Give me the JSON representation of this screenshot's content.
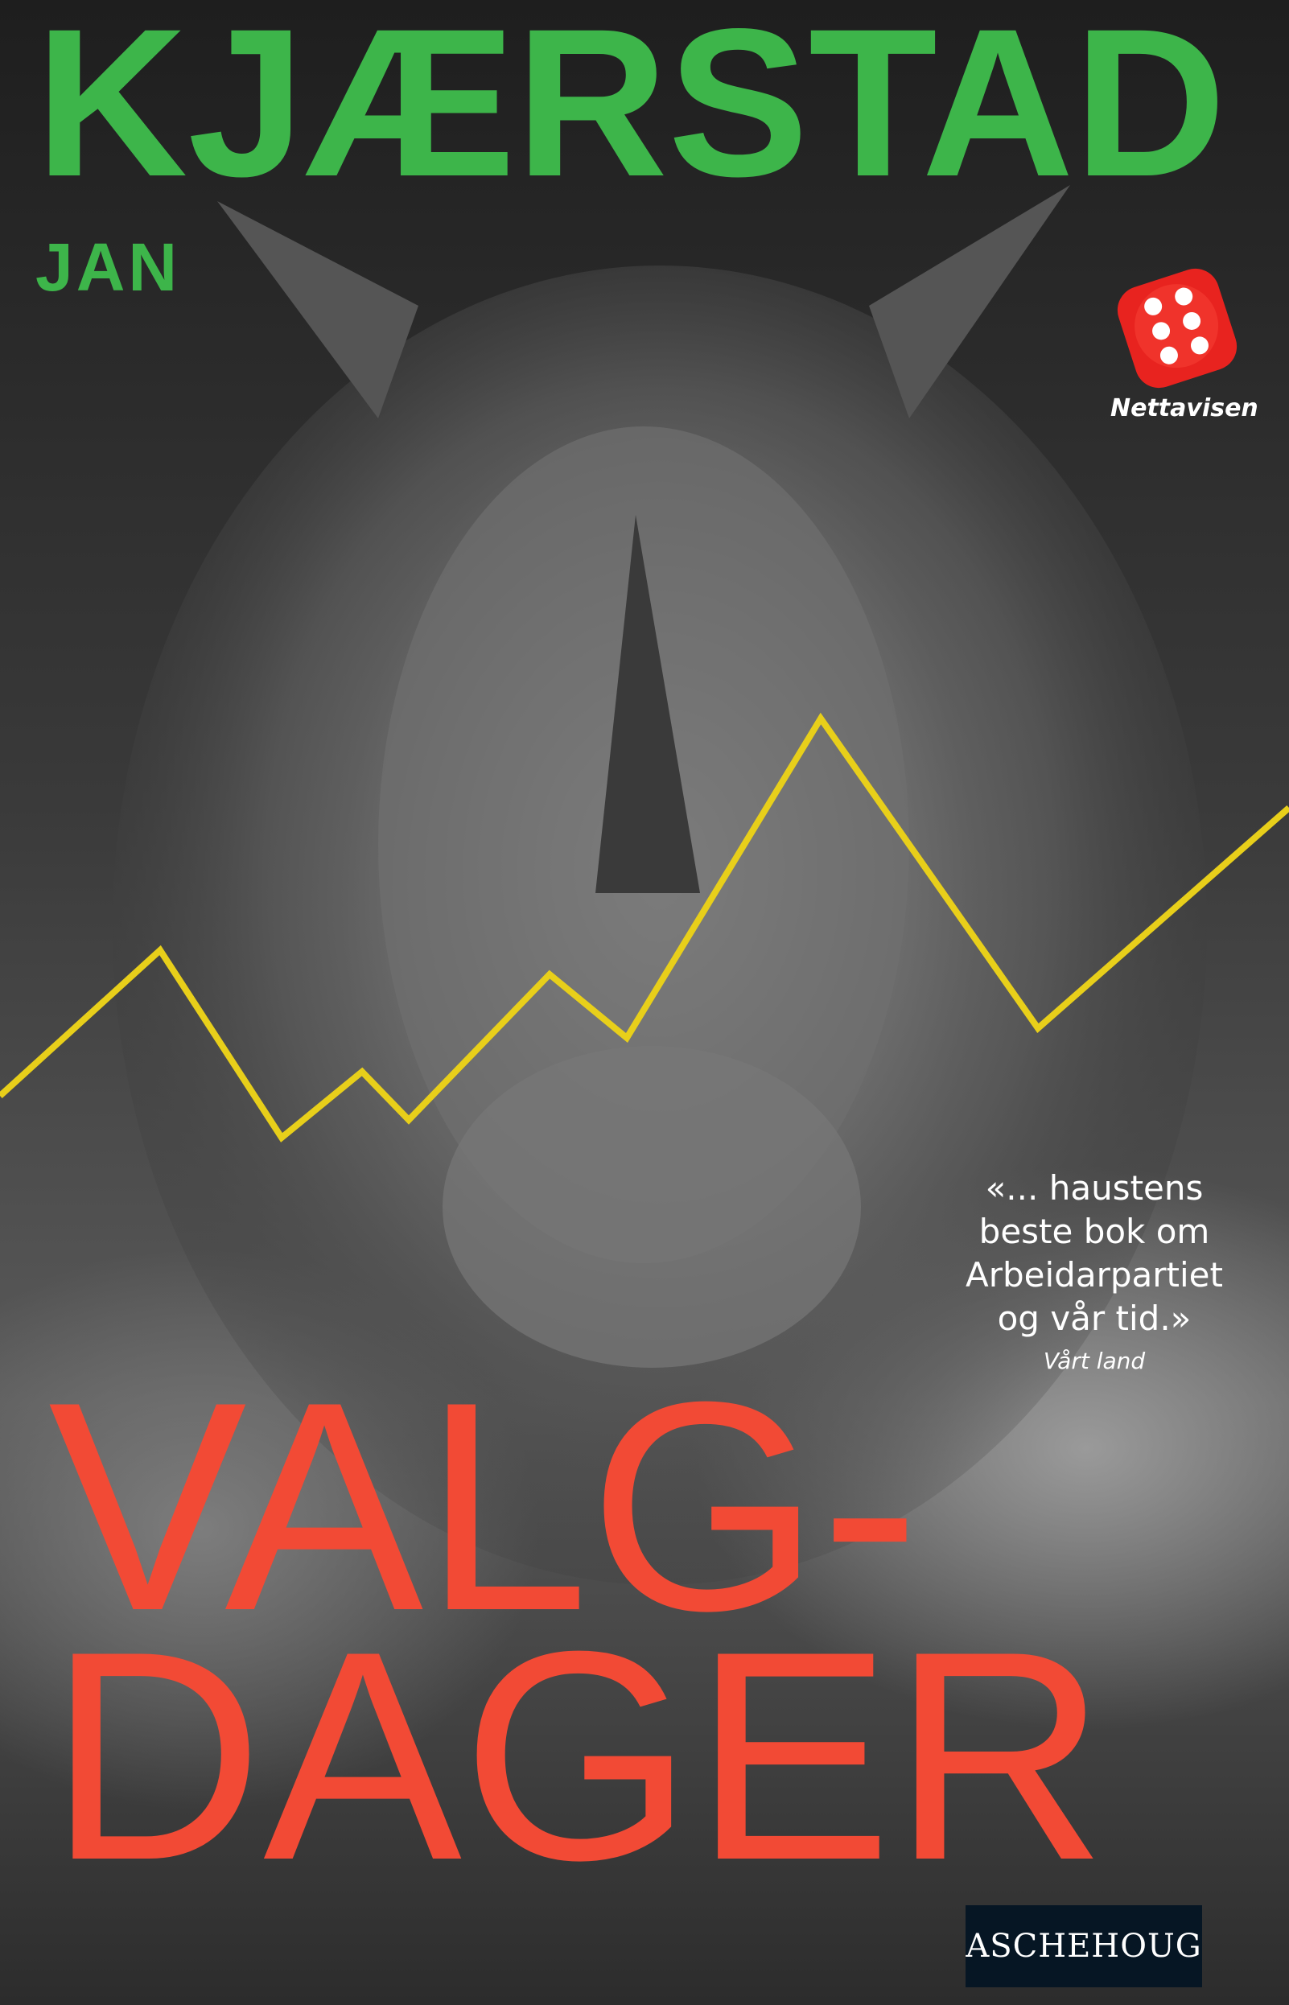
{
  "cover": {
    "author_last_name": "KJÆRSTAD",
    "author_first_name": "JAN",
    "title_line1": "VALG-",
    "title_line2": "DAGER",
    "badge": {
      "icon": "dice-six-icon",
      "label": "Nettavisen"
    },
    "quote": {
      "lines": [
        "«... haustens",
        "beste bok om",
        "Arbeidarpartiet",
        "og vår tid.»"
      ],
      "source": "Vårt land"
    },
    "publisher": "ASCHEHOUG",
    "colors": {
      "author": "#3db54a",
      "title": "#f24a35",
      "line": "#e8cf1a",
      "dice": "#e8231f",
      "publisher_bg": "#061624"
    }
  }
}
